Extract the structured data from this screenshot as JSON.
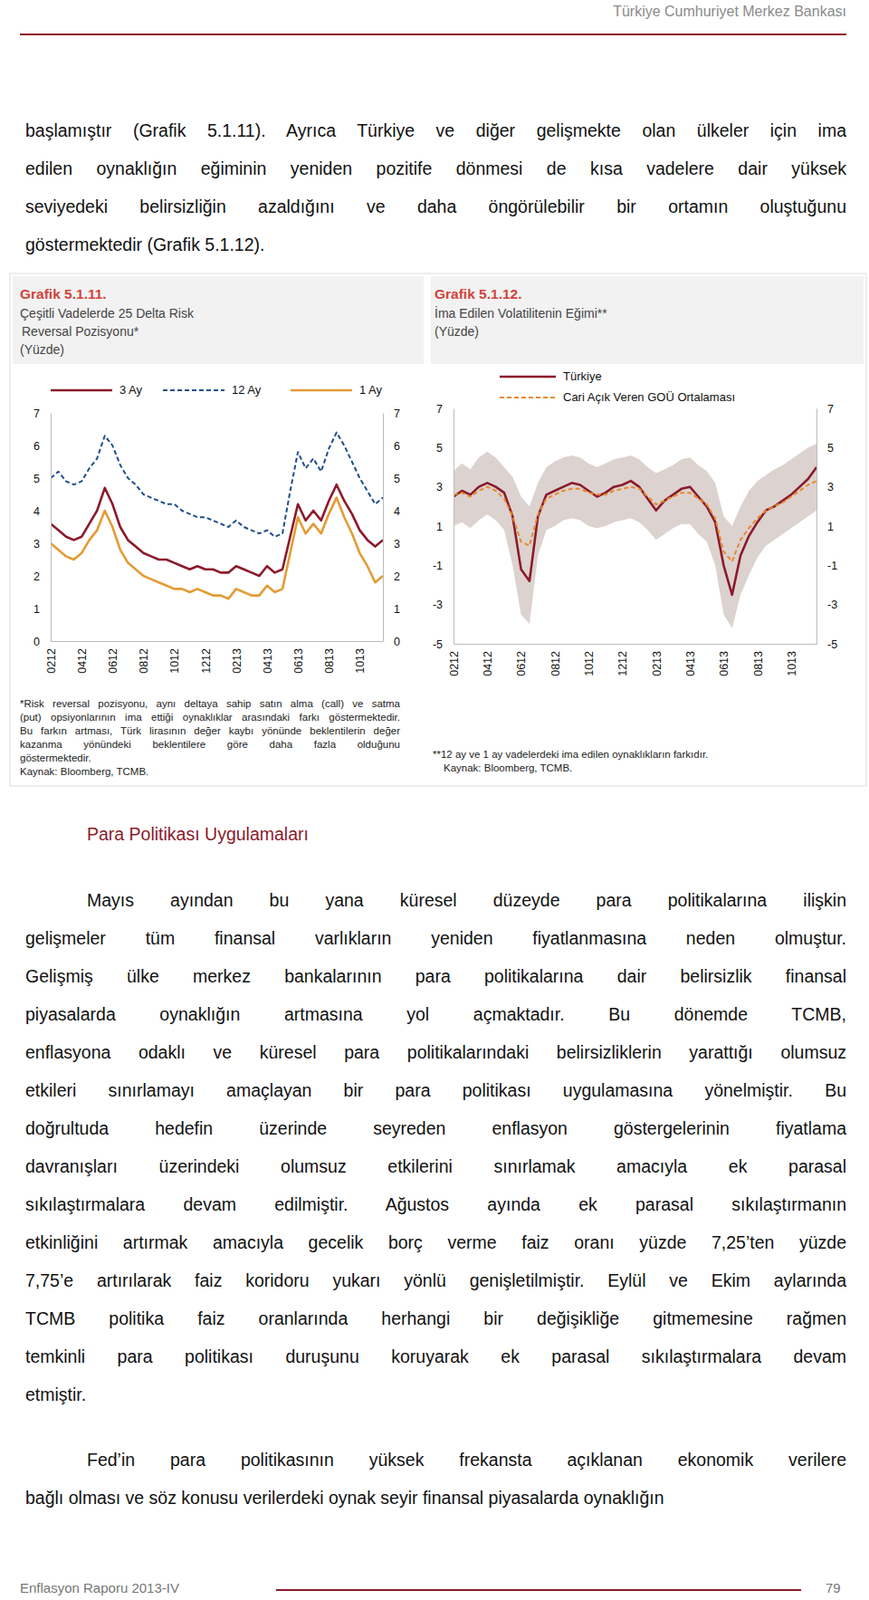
{
  "header": {
    "title": "Türkiye Cumhuriyet Merkez Bankası"
  },
  "intro": {
    "lines": [
      "başlamıştır (Grafik 5.1.11). Ayrıca Türkiye ve diğer gelişmekte olan ülkeler için ima",
      "edilen oynaklığın eğiminin yeniden pozitife dönmesi de kısa vadelere dair yüksek",
      "seviyedeki belirsizliğin azaldığını ve daha öngörülebilir bir ortamın oluştuğunu",
      "göstermektedir (Grafik 5.1.12)."
    ]
  },
  "chart_data": [
    {
      "type": "line",
      "title": "Grafik 5.1.11.",
      "subtitle": [
        "Çeşitli Vadelerde 25 Delta Risk",
        "Reversal Pozisyonu*"
      ],
      "ylabel": "(Yüzde)",
      "legend": "top",
      "grid": false,
      "categories": [
        "0212",
        null,
        null,
        null,
        "0412",
        null,
        null,
        null,
        "0612",
        null,
        null,
        null,
        "0812",
        null,
        null,
        null,
        "1012",
        null,
        null,
        null,
        "1212",
        null,
        null,
        null,
        "0213",
        null,
        null,
        null,
        "0413",
        null,
        null,
        null,
        "0613",
        null,
        null,
        null,
        "0813",
        null,
        null,
        null,
        "1013",
        null,
        null,
        null
      ],
      "ylim": [
        0,
        7
      ],
      "yticks": [
        0,
        1,
        2,
        3,
        4,
        5,
        6,
        7
      ],
      "series": [
        {
          "name": "3 Ay",
          "color": "#8B1A2B",
          "line_style": "solid",
          "values": [
            3.6,
            3.4,
            3.2,
            3.1,
            3.2,
            3.6,
            4.0,
            4.7,
            4.2,
            3.5,
            3.1,
            2.9,
            2.7,
            2.6,
            2.5,
            2.5,
            2.4,
            2.3,
            2.2,
            2.3,
            2.2,
            2.2,
            2.1,
            2.1,
            2.3,
            2.2,
            2.1,
            2.0,
            2.3,
            2.1,
            2.2,
            3.2,
            4.2,
            3.7,
            4.0,
            3.7,
            4.3,
            4.8,
            4.3,
            3.9,
            3.4,
            3.1,
            2.9,
            3.1
          ]
        },
        {
          "name": "12 Ay",
          "color": "#1F4E8C",
          "line_style": "dashed",
          "values": [
            5.0,
            5.2,
            4.9,
            4.8,
            4.9,
            5.3,
            5.6,
            6.3,
            6.0,
            5.4,
            5.0,
            4.8,
            4.5,
            4.4,
            4.3,
            4.2,
            4.2,
            4.0,
            3.9,
            3.8,
            3.8,
            3.7,
            3.6,
            3.5,
            3.7,
            3.5,
            3.4,
            3.3,
            3.4,
            3.2,
            3.3,
            4.6,
            5.8,
            5.3,
            5.6,
            5.2,
            5.9,
            6.4,
            6.0,
            5.5,
            5.0,
            4.6,
            4.2,
            4.4
          ]
        },
        {
          "name": "1 Ay",
          "color": "#E39B35",
          "line_style": "solid",
          "values": [
            3.0,
            2.8,
            2.6,
            2.5,
            2.7,
            3.1,
            3.4,
            4.0,
            3.5,
            2.8,
            2.4,
            2.2,
            2.0,
            1.9,
            1.8,
            1.7,
            1.6,
            1.6,
            1.5,
            1.6,
            1.5,
            1.4,
            1.4,
            1.3,
            1.6,
            1.5,
            1.4,
            1.4,
            1.7,
            1.5,
            1.6,
            2.7,
            3.8,
            3.3,
            3.6,
            3.3,
            3.9,
            4.4,
            3.8,
            3.3,
            2.7,
            2.3,
            1.8,
            2.0
          ]
        }
      ],
      "notes": [
        "*Risk reversal pozisyonu, aynı deltaya sahip satın alma (call) ve satma",
        "(put) opsiyonlarının ima ettiği oynaklıklar arasındaki farkı göstermektedir.",
        "Bu farkın artması, Türk lirasının değer kaybı yönünde beklentilerin değer",
        "kazanma yönündeki beklentilere göre daha fazla olduğunu",
        "göstermektedir.",
        "Kaynak: Bloomberg, TCMB."
      ]
    },
    {
      "type": "line",
      "title": "Grafik 5.1.12.",
      "subtitle": [
        "İma Edilen Volatilitenin Eğimi**"
      ],
      "ylabel": "(Yüzde)",
      "legend": "top",
      "grid": false,
      "categories": [
        "0212",
        null,
        null,
        null,
        "0412",
        null,
        null,
        null,
        "0612",
        null,
        null,
        null,
        "0812",
        null,
        null,
        null,
        "1012",
        null,
        null,
        null,
        "1212",
        null,
        null,
        null,
        "0213",
        null,
        null,
        null,
        "0413",
        null,
        null,
        null,
        "0613",
        null,
        null,
        null,
        "0813",
        null,
        null,
        null,
        "1013",
        null,
        null,
        null
      ],
      "ylim": [
        -5,
        7
      ],
      "yticks": [
        -5,
        -3,
        -1,
        1,
        3,
        5,
        7
      ],
      "series": [
        {
          "type": "band",
          "color": "#DCD2CF",
          "lower": [
            1.0,
            1.2,
            0.9,
            1.3,
            1.6,
            1.3,
            0.8,
            -1.0,
            -3.5,
            -4.0,
            -0.5,
            0.8,
            1.0,
            1.3,
            1.4,
            1.3,
            1.0,
            0.9,
            1.0,
            1.2,
            1.3,
            1.4,
            1.2,
            0.8,
            0.3,
            0.6,
            0.9,
            1.1,
            1.1,
            0.6,
            0.2,
            -1.0,
            -3.5,
            -4.2,
            -2.5,
            -1.5,
            -0.6,
            0.0,
            0.3,
            0.6,
            0.9,
            1.2,
            1.5,
            1.8
          ],
          "upper": [
            3.8,
            4.2,
            3.9,
            4.5,
            4.8,
            4.5,
            4.0,
            3.5,
            2.5,
            2.0,
            3.2,
            4.0,
            4.3,
            4.5,
            4.6,
            4.5,
            4.2,
            4.0,
            4.2,
            4.4,
            4.5,
            4.6,
            4.4,
            4.0,
            3.7,
            3.9,
            4.1,
            4.4,
            4.5,
            4.1,
            3.8,
            3.2,
            1.5,
            1.0,
            2.0,
            2.8,
            3.3,
            3.6,
            3.9,
            4.1,
            4.4,
            4.7,
            5.0,
            5.2
          ]
        },
        {
          "name": "Türkiye",
          "color": "#8B1A2B",
          "line_style": "solid",
          "values": [
            2.5,
            2.8,
            2.6,
            3.0,
            3.2,
            3.0,
            2.7,
            1.5,
            -1.2,
            -1.8,
            1.5,
            2.6,
            2.8,
            3.0,
            3.2,
            3.1,
            2.8,
            2.5,
            2.7,
            3.0,
            3.1,
            3.3,
            3.0,
            2.4,
            1.8,
            2.3,
            2.6,
            2.9,
            3.0,
            2.5,
            2.0,
            1.2,
            -1.0,
            -2.5,
            -0.5,
            0.5,
            1.2,
            1.8,
            2.0,
            2.3,
            2.6,
            3.0,
            3.4,
            4.0
          ]
        },
        {
          "name": "Cari Açık Veren GOÜ Ortalaması",
          "color": "#E8892B",
          "line_style": "dashed",
          "values": [
            2.6,
            2.7,
            2.5,
            2.8,
            3.0,
            2.8,
            2.4,
            1.5,
            0.2,
            0.0,
            1.6,
            2.4,
            2.6,
            2.8,
            2.9,
            2.9,
            2.7,
            2.6,
            2.6,
            2.8,
            2.9,
            3.0,
            2.9,
            2.5,
            2.1,
            2.3,
            2.5,
            2.7,
            2.7,
            2.4,
            2.1,
            1.4,
            -0.3,
            -0.8,
            0.3,
            0.9,
            1.4,
            1.8,
            2.0,
            2.2,
            2.5,
            2.8,
            3.1,
            3.3
          ]
        }
      ],
      "notes": [
        "**12 ay ve 1 ay vadelerdeki ima edilen oynaklıkların farkıdır.",
        "Kaynak: Bloomberg, TCMB."
      ]
    }
  ],
  "section": {
    "title": "Para Politikası Uygulamaları",
    "paragraphs": [
      [
        "Mayıs ayından bu yana küresel düzeyde para politikalarına ilişkin",
        "gelişmeler tüm finansal varlıkların yeniden fiyatlanmasına neden olmuştur.",
        "Gelişmiş ülke merkez bankalarının para politikalarına dair belirsizlik finansal",
        "piyasalarda oynaklığın artmasına yol açmaktadır. Bu dönemde TCMB,",
        "enflasyona odaklı ve küresel para politikalarındaki belirsizliklerin yarattığı olumsuz",
        "etkileri sınırlamayı amaçlayan bir para politikası uygulamasına yönelmiştir. Bu",
        "doğrultuda hedefin üzerinde seyreden enflasyon göstergelerinin fiyatlama",
        "davranışları üzerindeki olumsuz etkilerini sınırlamak amacıyla ek parasal",
        "sıkılaştırmalara devam edilmiştir. Ağustos ayında ek parasal sıkılaştırmanın",
        "etkinliğini artırmak amacıyla gecelik borç verme faiz oranı yüzde 7,25’ten yüzde",
        "7,75’e artırılarak faiz koridoru yukarı yönlü genişletilmiştir. Eylül ve Ekim aylarında",
        "TCMB politika faiz oranlarında herhangi bir değişikliğe gitmemesine rağmen",
        "temkinli para politikası duruşunu koruyarak ek parasal sıkılaştırmalara devam",
        "etmiştir."
      ],
      [
        "Fed’in para politikasının yüksek frekansta açıklanan ekonomik verilere",
        "bağlı olması ve söz konusu verilerdeki oynak seyir finansal piyasalarda oynaklığın"
      ]
    ]
  },
  "footer": {
    "title": "Enflasyon Raporu 2013-IV",
    "page": 79
  }
}
